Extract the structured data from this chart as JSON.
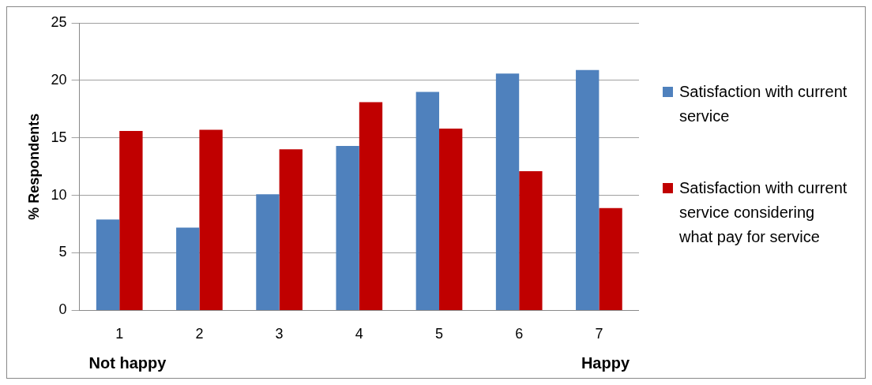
{
  "chart_data": {
    "type": "bar",
    "ylabel": "% Respondents",
    "categories": [
      "1",
      "2",
      "3",
      "4",
      "5",
      "6",
      "7"
    ],
    "series": [
      {
        "name": "Satisfaction with current service",
        "color": "#4f81bd",
        "values": [
          7.9,
          7.2,
          10.1,
          14.3,
          19.0,
          20.6,
          20.9
        ]
      },
      {
        "name": "Satisfaction with current service considering what pay for service",
        "color": "#c00000",
        "values": [
          15.6,
          15.7,
          14.0,
          18.1,
          15.8,
          12.1,
          8.9
        ]
      }
    ],
    "ylim": [
      0,
      25
    ],
    "yticks": [
      0,
      5,
      10,
      15,
      20,
      25
    ],
    "grid": "y",
    "legend": "right",
    "annotations": [
      "Not happy",
      "Happy"
    ]
  }
}
